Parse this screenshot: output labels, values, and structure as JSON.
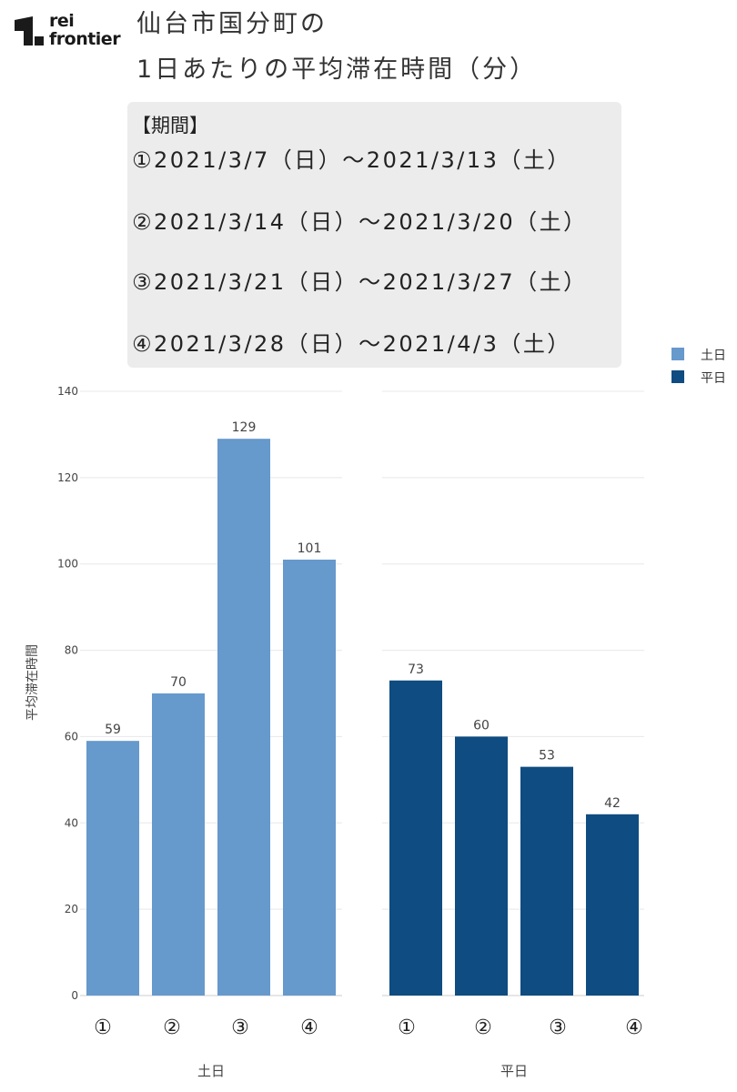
{
  "brand": {
    "line1": "rei",
    "line2": "frontier"
  },
  "title": {
    "line1": "仙台市国分町の",
    "line2": "1日あたりの平均滞在時間（分）"
  },
  "period": {
    "heading": "【期間】",
    "lines": [
      "①2021/3/7（日）～2021/3/13（土）",
      "②2021/3/14（日）～2021/3/20（土）",
      "③2021/3/21（日）～2021/3/27（土）",
      "④2021/3/28（日）～2021/4/3（土）"
    ]
  },
  "legend": [
    {
      "label": "土日",
      "color": "#6699cc"
    },
    {
      "label": "平日",
      "color": "#0f4c81"
    }
  ],
  "chart_data": [
    {
      "type": "bar",
      "panel": "土日",
      "xlabel": "土日",
      "ylabel": "平均滞在時間",
      "categories": [
        "①",
        "②",
        "③",
        "④"
      ],
      "values": [
        59,
        70,
        129,
        101
      ],
      "color": "#6699cc",
      "ylim": [
        0,
        140
      ],
      "yticks": [
        0,
        20,
        40,
        60,
        80,
        100,
        120,
        140
      ],
      "grid": true
    },
    {
      "type": "bar",
      "panel": "平日",
      "xlabel": "平日",
      "categories": [
        "①",
        "②",
        "③",
        "④"
      ],
      "values": [
        73,
        60,
        53,
        42
      ],
      "color": "#0f4c81",
      "ylim": [
        0,
        140
      ],
      "yticks": [
        0,
        20,
        40,
        60,
        80,
        100,
        120,
        140
      ],
      "grid": true
    }
  ]
}
